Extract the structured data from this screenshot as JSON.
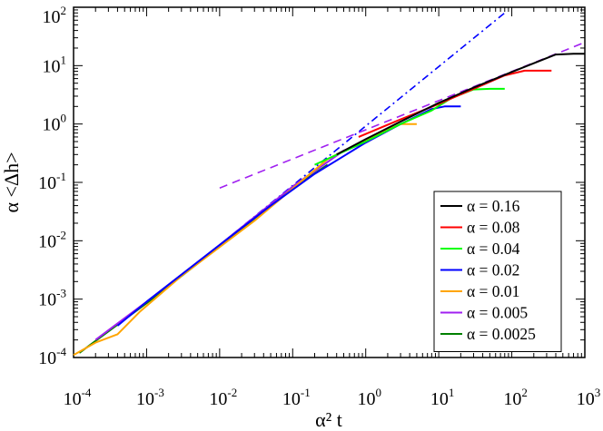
{
  "chart_data": {
    "type": "line",
    "xlabel": "α² t",
    "ylabel": "α <Δh>",
    "xscale": "log",
    "yscale": "log",
    "xlim": [
      0.0001,
      1000
    ],
    "ylim": [
      0.0001,
      100
    ],
    "grid": false,
    "legend_position": "lower-right",
    "x_ticks": [
      {
        "value": 0.0001,
        "base": "10",
        "exp": "-4"
      },
      {
        "value": 0.001,
        "base": "10",
        "exp": "-3"
      },
      {
        "value": 0.01,
        "base": "10",
        "exp": "-2"
      },
      {
        "value": 0.1,
        "base": "10",
        "exp": "-1"
      },
      {
        "value": 1,
        "base": "10",
        "exp": "0"
      },
      {
        "value": 10,
        "base": "10",
        "exp": "1"
      },
      {
        "value": 100,
        "base": "10",
        "exp": "2"
      },
      {
        "value": 1000,
        "base": "10",
        "exp": "3"
      }
    ],
    "y_ticks": [
      {
        "value": 0.0001,
        "base": "10",
        "exp": "-4"
      },
      {
        "value": 0.001,
        "base": "10",
        "exp": "-3"
      },
      {
        "value": 0.01,
        "base": "10",
        "exp": "-2"
      },
      {
        "value": 0.1,
        "base": "10",
        "exp": "-1"
      },
      {
        "value": 1,
        "base": "10",
        "exp": "0"
      },
      {
        "value": 10,
        "base": "10",
        "exp": "1"
      },
      {
        "value": 100,
        "base": "10",
        "exp": "2"
      }
    ],
    "series": [
      {
        "name": "α = 0.16",
        "color": "#000000",
        "points": [
          [
            0.4,
            0.3
          ],
          [
            1,
            0.55
          ],
          [
            3,
            1.1
          ],
          [
            10,
            2.3
          ],
          [
            30,
            4.2
          ],
          [
            100,
            7.8
          ],
          [
            200,
            11
          ],
          [
            400,
            15.5
          ],
          [
            700,
            16
          ],
          [
            1000,
            16
          ]
        ]
      },
      {
        "name": "α = 0.08",
        "color": "#ff0000",
        "points": [
          [
            0.8,
            0.6
          ],
          [
            3,
            1.2
          ],
          [
            10,
            2.2
          ],
          [
            30,
            4.0
          ],
          [
            80,
            6.8
          ],
          [
            150,
            8.2
          ],
          [
            220,
            8.2
          ],
          [
            350,
            8.2
          ]
        ]
      },
      {
        "name": "α = 0.04",
        "color": "#00ff00",
        "points": [
          [
            0.2,
            0.2
          ],
          [
            1,
            0.5
          ],
          [
            3,
            1.0
          ],
          [
            8,
            1.7
          ],
          [
            15,
            2.8
          ],
          [
            30,
            3.9
          ],
          [
            50,
            4.0
          ],
          [
            80,
            4.0
          ]
        ]
      },
      {
        "name": "α = 0.02",
        "color": "#0000ff",
        "points": [
          [
            0.0004,
            0.00035
          ],
          [
            0.001,
            0.0009
          ],
          [
            0.01,
            0.0085
          ],
          [
            0.05,
            0.04
          ],
          [
            0.2,
            0.14
          ],
          [
            1,
            0.48
          ],
          [
            3,
            1.0
          ],
          [
            8,
            1.8
          ],
          [
            12,
            2.0
          ],
          [
            20,
            2.0
          ]
        ]
      },
      {
        "name": "α = 0.01",
        "color": "#ffa500",
        "points": [
          [
            0.0001,
            0.00011
          ],
          [
            0.0002,
            0.00018
          ],
          [
            0.0004,
            0.00025
          ],
          [
            0.0008,
            0.0006
          ],
          [
            0.003,
            0.0025
          ],
          [
            0.03,
            0.022
          ],
          [
            0.3,
            0.25
          ],
          [
            1.2,
            0.6
          ],
          [
            3,
            1.0
          ],
          [
            5,
            1.0
          ]
        ]
      },
      {
        "name": "α = 0.005",
        "color": "#a020f0",
        "points": [
          [
            0.0002,
            0.0002
          ],
          [
            0.001,
            0.0009
          ],
          [
            0.01,
            0.0085
          ],
          [
            0.1,
            0.085
          ],
          [
            0.5,
            0.35
          ],
          [
            1,
            0.48
          ]
        ]
      },
      {
        "name": "α = 0.0025",
        "color": "#008000",
        "points": [
          [
            0.00012,
            0.00012
          ],
          [
            0.001,
            0.00085
          ],
          [
            0.01,
            0.008
          ],
          [
            0.1,
            0.08
          ],
          [
            0.3,
            0.2
          ]
        ]
      }
    ],
    "reference_lines": [
      {
        "style": "dash-dot",
        "color": "#0000ff",
        "points": [
          [
            0.01,
            0.0085
          ],
          [
            80,
            80
          ]
        ]
      },
      {
        "style": "dashed",
        "color": "#a020f0",
        "points": [
          [
            0.01,
            0.08
          ],
          [
            1000,
            25
          ]
        ]
      }
    ]
  }
}
